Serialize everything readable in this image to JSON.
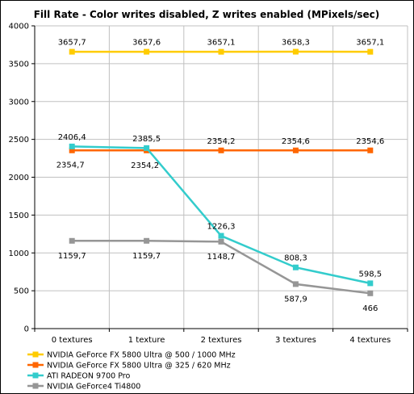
{
  "chart_data": {
    "type": "line",
    "title": "Fill Rate - Color writes disabled, Z writes enabled (MPixels/sec)",
    "categories": [
      "0 textures",
      "1 texture",
      "2 textures",
      "3 textures",
      "4 textures"
    ],
    "ylim": [
      0,
      4000
    ],
    "yticks": [
      0,
      500,
      1000,
      1500,
      2000,
      2500,
      3000,
      3500,
      4000
    ],
    "grid": true,
    "legend_position": "bottom",
    "series": [
      {
        "name": "NVIDIA GeForce FX 5800 Ultra @ 500 / 1000 MHz",
        "color": "#FFCC00",
        "values": [
          3657.7,
          3657.6,
          3657.1,
          3658.3,
          3657.1
        ],
        "labels": [
          "3657,7",
          "3657,6",
          "3657,1",
          "3658,3",
          "3657,1"
        ]
      },
      {
        "name": "NVIDIA GeForce FX 5800 Ultra @ 325 / 620 MHz",
        "color": "#FF6600",
        "values": [
          2354.7,
          2354.2,
          2354.2,
          2354.6,
          2354.6
        ],
        "labels": [
          "2354,7",
          "2354,2",
          "2354,2",
          "2354,6",
          "2354,6"
        ]
      },
      {
        "name": "ATI RADEON 9700 Pro",
        "color": "#33CCCC",
        "values": [
          2406.4,
          2385.5,
          1226.3,
          808.3,
          598.5
        ],
        "labels": [
          "2406,4",
          "2385,5",
          "1226,3",
          "808,3",
          "598,5"
        ]
      },
      {
        "name": "NVIDIA GeForce4 Ti4800",
        "color": "#969696",
        "values": [
          1159.7,
          1159.7,
          1148.7,
          587.9,
          466
        ],
        "labels": [
          "1159,7",
          "1159,7",
          "1148,7",
          "587,9",
          "466"
        ]
      }
    ]
  }
}
